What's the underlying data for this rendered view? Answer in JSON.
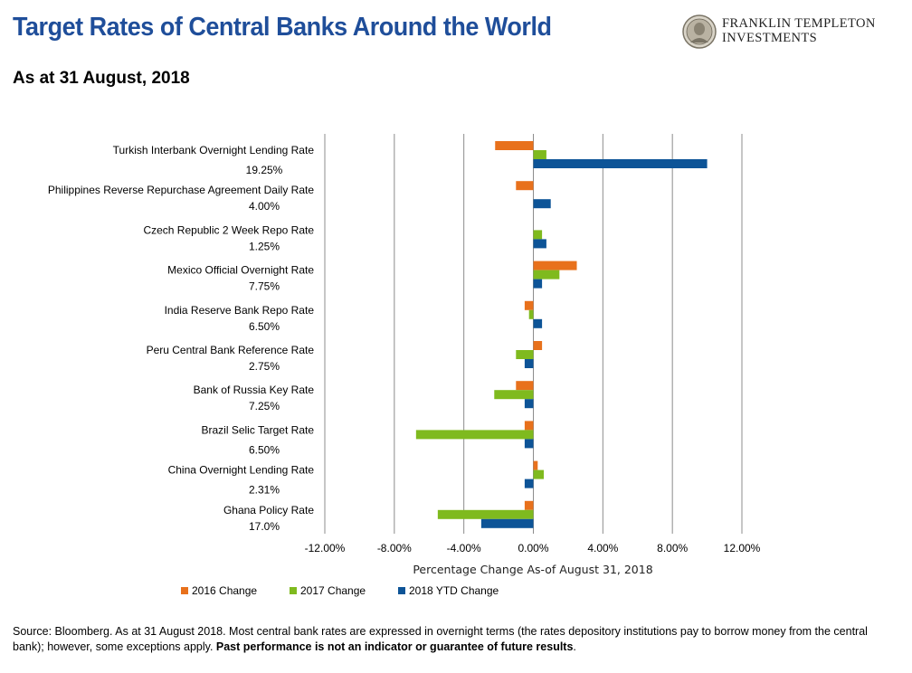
{
  "header": {
    "title": "Target Rates of Central Banks Around the World",
    "subtitle": "As at 31 August, 2018",
    "logo_line1": "FRANKLIN TEMPLETON",
    "logo_line2": "INVESTMENTS"
  },
  "colors": {
    "title": "#1f4e9a",
    "s2016": "#e8711c",
    "s2017": "#7fba1e",
    "s2018": "#0d5497",
    "grid": "#8c8c8c"
  },
  "chart_data": {
    "type": "bar",
    "orientation": "horizontal",
    "xlabel": "Percentage Change As-of August 31, 2018",
    "xlim": [
      -12,
      12
    ],
    "xticks": [
      "-12.00%",
      "-8.00%",
      "-4.00%",
      "0.00%",
      "4.00%",
      "8.00%",
      "12.00%"
    ],
    "tick_values": [
      -12,
      -8,
      -4,
      0,
      4,
      8,
      12
    ],
    "grid": true,
    "legend_position": "bottom-left",
    "categories": [
      {
        "name": "Turkish Interbank Overnight Lending Rate",
        "rate": "19.25%"
      },
      {
        "name": "Philippines Reverse Repurchase Agreement Daily Rate",
        "rate": "4.00%"
      },
      {
        "name": "Czech Republic 2 Week Repo Rate",
        "rate": "1.25%"
      },
      {
        "name": "Mexico Official Overnight Rate",
        "rate": "7.75%"
      },
      {
        "name": "India Reserve Bank Repo Rate",
        "rate": "6.50%"
      },
      {
        "name": "Peru Central Bank Reference Rate",
        "rate": "2.75%"
      },
      {
        "name": "Bank of Russia Key Rate",
        "rate": "7.25%"
      },
      {
        "name": "Brazil Selic Target Rate",
        "rate": "6.50%"
      },
      {
        "name": "China Overnight Lending  Rate",
        "rate": "2.31%"
      },
      {
        "name": "Ghana Policy Rate",
        "rate": "17.0%"
      }
    ],
    "series": [
      {
        "name": "2016 Change",
        "color": "#e8711c",
        "values": [
          -2.2,
          -1.0,
          0,
          2.5,
          -0.5,
          0.5,
          -1.0,
          -0.5,
          0.25,
          -0.5
        ]
      },
      {
        "name": "2017 Change",
        "color": "#7fba1e",
        "values": [
          0.75,
          0,
          0.5,
          1.5,
          -0.25,
          -1.0,
          -2.25,
          -6.75,
          0.6,
          -5.5
        ]
      },
      {
        "name": "2018 YTD Change",
        "color": "#0d5497",
        "values": [
          10.0,
          1.0,
          0.75,
          0.5,
          0.5,
          -0.5,
          -0.5,
          -0.5,
          -0.5,
          -3.0
        ]
      }
    ]
  },
  "footer": {
    "source_text": "Source: Bloomberg. As at 31 August 2018. Most central bank rates are expressed in overnight terms (the rates depository institutions pay to borrow money from the central bank); however, some exceptions apply. ",
    "disclaimer": "Past performance is not an indicator or guarantee of future results",
    "end": "."
  }
}
